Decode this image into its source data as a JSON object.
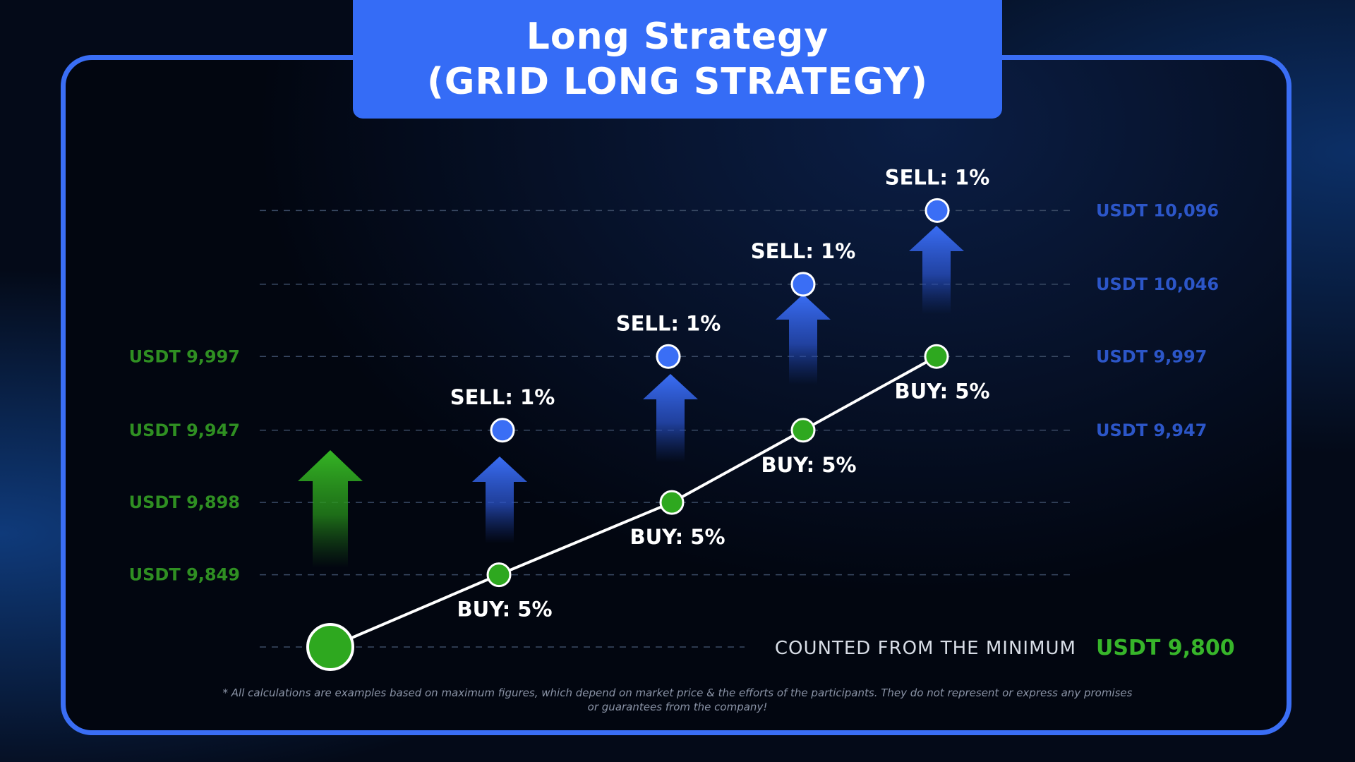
{
  "banner": {
    "line1": "Long Strategy",
    "line2": "(GRID LONG STRATEGY)"
  },
  "colors": {
    "banner": "#356cf6",
    "frame": "#3a6ef5",
    "buy": "#2ea81f",
    "sell": "#3a6ef5",
    "left_label": "#2f8f22",
    "right_label": "#2c56c8",
    "minimum_value": "#37b52a"
  },
  "chart_data": {
    "type": "line",
    "left_levels": [
      "USDT 9,997",
      "USDT 9,947",
      "USDT 9,898",
      "USDT 9,849"
    ],
    "right_levels": [
      "USDT 10,096",
      "USDT 10,046",
      "USDT 9,997",
      "USDT 9,947"
    ],
    "minimum": {
      "label": "COUNTED FROM THE MINIMUM",
      "value": "USDT 9,800",
      "price": 9800
    },
    "buy_points": [
      {
        "label": "BUY: 5%",
        "price": 9849,
        "value": 5
      },
      {
        "label": "BUY: 5%",
        "price": 9898,
        "value": 5
      },
      {
        "label": "BUY: 5%",
        "price": 9947,
        "value": 5
      },
      {
        "label": "BUY: 5%",
        "price": 9997,
        "value": 5
      }
    ],
    "sell_points": [
      {
        "label": "SELL: 1%",
        "price": 9947,
        "value": 1
      },
      {
        "label": "SELL: 1%",
        "price": 9997,
        "value": 1
      },
      {
        "label": "SELL: 1%",
        "price": 10046,
        "value": 1
      },
      {
        "label": "SELL: 1%",
        "price": 10096,
        "value": 1
      }
    ]
  },
  "footnote": {
    "line1": "* All calculations are examples based on maximum figures, which depend on market price & the efforts of the participants. They do not represent or express any promises",
    "line2": "or guarantees from the company!"
  }
}
